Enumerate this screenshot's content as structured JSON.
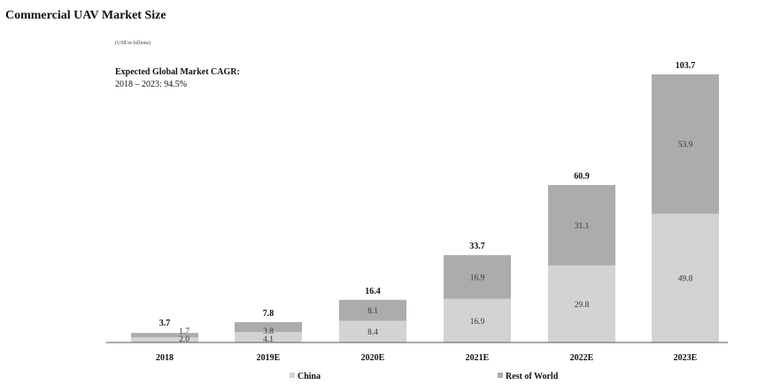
{
  "chart_data": {
    "type": "bar",
    "stacked": true,
    "title": "Commercial UAV Market Size",
    "unit_note": "(US$ in billions)",
    "annotation": {
      "heading": "Expected Global Market CAGR:",
      "text": "2018 – 2023: 94.5%"
    },
    "categories": [
      "2018",
      "2019E",
      "2020E",
      "2021E",
      "2022E",
      "2023E"
    ],
    "series": [
      {
        "name": "China",
        "color": "#d3d3d3",
        "values": [
          2.0,
          4.1,
          8.4,
          16.9,
          29.8,
          49.8
        ],
        "labels": [
          "2.0",
          "4.1",
          "8.4",
          "16.9",
          "29.8",
          "49.8"
        ]
      },
      {
        "name": "Rest of World",
        "color": "#acacac",
        "values": [
          1.7,
          3.8,
          8.1,
          16.9,
          31.1,
          53.9
        ],
        "labels": [
          "1.7",
          "3.8",
          "8.1",
          "16.9",
          "31.1",
          "53.9"
        ]
      }
    ],
    "totals": [
      "3.7",
      "7.8",
      "16.4",
      "33.7",
      "60.9",
      "103.7"
    ],
    "ylim": [
      0,
      103.7
    ],
    "grid": false,
    "legend_position": "bottom-center"
  }
}
